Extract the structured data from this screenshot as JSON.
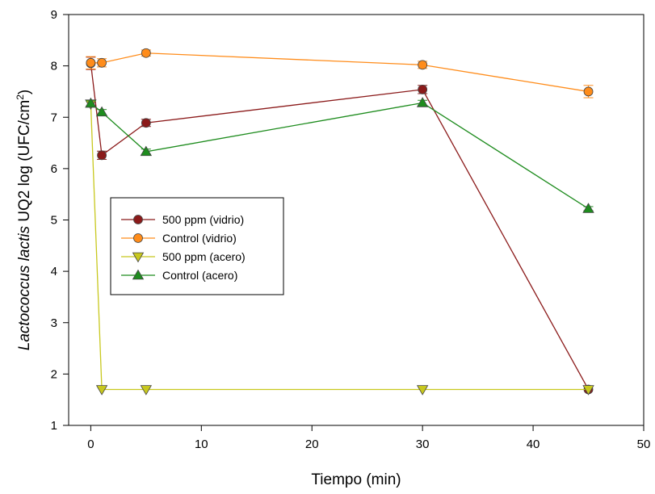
{
  "chart_data": {
    "type": "line",
    "xlabel": "Tiempo (min)",
    "ylabel": {
      "italic": "Lactococcus lactis",
      "rest": " UQ2 log (UFC/cm",
      "sup": "2",
      "close": ")"
    },
    "xlim": [
      -2,
      50
    ],
    "ylim": [
      1,
      9
    ],
    "xticks": [
      0,
      10,
      20,
      30,
      40,
      50
    ],
    "yticks": [
      1,
      2,
      3,
      4,
      5,
      6,
      7,
      8,
      9
    ],
    "grid": false,
    "legend_position": "left-middle",
    "series": [
      {
        "name": "500 ppm (vidrio)",
        "color": "#8B1A1A",
        "marker": "circle",
        "x": [
          0,
          1,
          5,
          30,
          45
        ],
        "y": [
          8.05,
          6.26,
          6.89,
          7.54,
          1.7
        ],
        "err": [
          0.12,
          0.08,
          0.07,
          0.08,
          0.0
        ]
      },
      {
        "name": "Control (vidrio)",
        "color": "#FF8C1A",
        "marker": "circle",
        "x": [
          0,
          1,
          5,
          30,
          45
        ],
        "y": [
          8.06,
          8.06,
          8.25,
          8.02,
          7.5
        ],
        "err": [
          0.12,
          0.08,
          0.06,
          0.07,
          0.12
        ]
      },
      {
        "name": "500 ppm (acero)",
        "color": "#C8C81E",
        "marker": "triangle-down",
        "x": [
          0,
          1,
          5,
          30,
          45
        ],
        "y": [
          7.26,
          1.7,
          1.7,
          1.7,
          1.7
        ],
        "err": [
          0.05,
          0.0,
          0.0,
          0.0,
          0.0
        ]
      },
      {
        "name": "Control (acero)",
        "color": "#1E8C1E",
        "marker": "triangle-up",
        "x": [
          0,
          1,
          5,
          30,
          45
        ],
        "y": [
          7.27,
          7.1,
          6.33,
          7.28,
          5.22
        ],
        "err": [
          0.05,
          0.05,
          0.05,
          0.05,
          0.04
        ]
      }
    ]
  }
}
